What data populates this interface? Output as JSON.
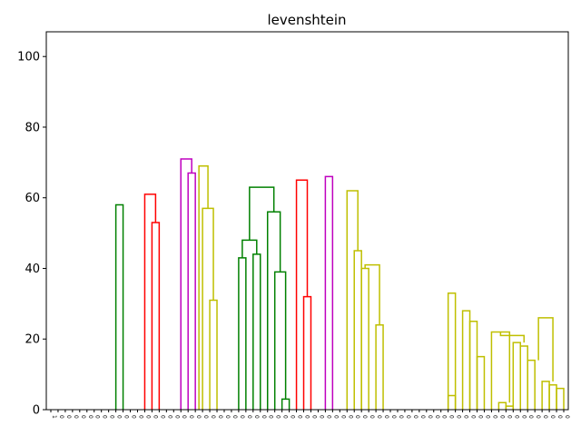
{
  "chart_data": {
    "type": "dendrogram",
    "title": "levenshtein",
    "xlabel": "",
    "ylabel": "",
    "ylim": [
      0,
      107
    ],
    "yticks": [
      0,
      20,
      40,
      60,
      80,
      100
    ],
    "leaf_count": 72,
    "leaf_labels": [
      "1",
      "0",
      "0",
      "0",
      "0",
      "0",
      "0",
      "0",
      "0",
      "0",
      "0",
      "0",
      "0",
      "0",
      "0",
      "0",
      "0",
      "0",
      "0",
      "0",
      "0",
      "0",
      "0",
      "0",
      "0",
      "0",
      "0",
      "0",
      "0",
      "0",
      "0",
      "0",
      "0",
      "0",
      "0",
      "0",
      "0",
      "0",
      "0",
      "0",
      "0",
      "0",
      "0",
      "0",
      "0",
      "0",
      "0",
      "0",
      "0",
      "0",
      "0",
      "0",
      "0",
      "0",
      "0",
      "0",
      "0",
      "0",
      "0",
      "0",
      "0",
      "0",
      "0",
      "0",
      "0",
      "0",
      "0",
      "0",
      "0",
      "0",
      "0",
      "0"
    ],
    "colors": {
      "blue": "#0000ff",
      "green": "#008000",
      "red": "#ff0000",
      "cyan": "#00bfbf",
      "magenta": "#bf00bf",
      "olive": "#bfbf00",
      "black": "#000000"
    },
    "links": [
      {
        "a": 9,
        "b": 10,
        "h": 58,
        "ha": 0,
        "hb": 0,
        "color": "green"
      },
      {
        "a": 14,
        "b": 15,
        "h": 53,
        "ha": 0,
        "hb": 0,
        "color": "red"
      },
      {
        "a": 13,
        "b": 14.5,
        "h": 61,
        "ha": 0,
        "hb": 53,
        "color": "red"
      },
      {
        "a": 19,
        "b": 20,
        "h": 67,
        "ha": 0,
        "hb": 0,
        "color": "magenta"
      },
      {
        "a": 18,
        "b": 19.5,
        "h": 71,
        "ha": 0,
        "hb": 67,
        "color": "magenta"
      },
      {
        "a": 22,
        "b": 23,
        "h": 31,
        "ha": 0,
        "hb": 0,
        "color": "olive"
      },
      {
        "a": 21,
        "b": 22.5,
        "h": 57,
        "ha": 0,
        "hb": 31,
        "color": "olive"
      },
      {
        "a": 20.5,
        "b": 21.75,
        "h": 69,
        "ha": 0,
        "hb": 57,
        "color": "olive"
      },
      {
        "a": 26,
        "b": 27,
        "h": 43,
        "ha": 0,
        "hb": 0,
        "color": "green"
      },
      {
        "a": 28,
        "b": 29,
        "h": 44,
        "ha": 0,
        "hb": 0,
        "color": "green"
      },
      {
        "a": 26.5,
        "b": 28.5,
        "h": 48,
        "ha": 43,
        "hb": 44,
        "color": "green"
      },
      {
        "a": 32,
        "b": 33,
        "h": 3,
        "ha": 0,
        "hb": 0,
        "color": "green"
      },
      {
        "a": 31,
        "b": 32.5,
        "h": 39,
        "ha": 0,
        "hb": 3,
        "color": "green"
      },
      {
        "a": 30,
        "b": 31.75,
        "h": 56,
        "ha": 0,
        "hb": 39,
        "color": "green"
      },
      {
        "a": 27.5,
        "b": 30.875,
        "h": 63,
        "ha": 48,
        "hb": 56,
        "color": "green"
      },
      {
        "a": 35,
        "b": 36,
        "h": 32,
        "ha": 0,
        "hb": 0,
        "color": "red"
      },
      {
        "a": 34,
        "b": 35.5,
        "h": 65,
        "ha": 0,
        "hb": 32,
        "color": "red"
      },
      {
        "a": 38,
        "b": 39,
        "h": 66,
        "ha": 0,
        "hb": 0,
        "color": "magenta"
      },
      {
        "a": 42,
        "b": 43,
        "h": 45,
        "ha": 0,
        "hb": 0,
        "color": "olive"
      },
      {
        "a": 43,
        "b": 44,
        "h": 40,
        "ha": 0,
        "hb": 0,
        "color": "olive"
      },
      {
        "a": 45,
        "b": 46,
        "h": 24,
        "ha": 0,
        "hb": 0,
        "color": "olive"
      },
      {
        "a": 41,
        "b": 42.5,
        "h": 62,
        "ha": 0,
        "hb": 45,
        "color": "olive"
      },
      {
        "a": 43.5,
        "b": 45.5,
        "h": 41,
        "ha": 40,
        "hb": 24,
        "color": "olive"
      },
      {
        "a": 55,
        "b": 56,
        "h": 33,
        "ha": 0,
        "hb": 0,
        "color": "olive"
      },
      {
        "a": 57,
        "b": 58,
        "h": 28,
        "ha": 0,
        "hb": 0,
        "color": "olive"
      },
      {
        "a": 58,
        "b": 59,
        "h": 25,
        "ha": 0,
        "hb": 0,
        "color": "olive"
      },
      {
        "a": 59,
        "b": 60,
        "h": 15,
        "ha": 0,
        "hb": 0,
        "color": "olive"
      },
      {
        "a": 55,
        "b": 56,
        "h": 4,
        "ha": 0,
        "hb": 0,
        "color": "olive"
      },
      {
        "a": 62,
        "b": 63,
        "h": 2,
        "ha": 0,
        "hb": 0,
        "color": "olive"
      },
      {
        "a": 63,
        "b": 64,
        "h": 1,
        "ha": 0,
        "hb": 0,
        "color": "olive"
      },
      {
        "a": 61,
        "b": 63.5,
        "h": 22,
        "ha": 0,
        "hb": 2,
        "color": "olive"
      },
      {
        "a": 64,
        "b": 65,
        "h": 19,
        "ha": 0,
        "hb": 0,
        "color": "olive"
      },
      {
        "a": 65,
        "b": 66,
        "h": 18,
        "ha": 0,
        "hb": 0,
        "color": "olive"
      },
      {
        "a": 66,
        "b": 67,
        "h": 14,
        "ha": 0,
        "hb": 0,
        "color": "olive"
      },
      {
        "a": 62.25,
        "b": 65.5,
        "h": 21,
        "ha": 22,
        "hb": 19,
        "color": "olive"
      },
      {
        "a": 68,
        "b": 69,
        "h": 8,
        "ha": 0,
        "hb": 0,
        "color": "olive"
      },
      {
        "a": 69,
        "b": 70,
        "h": 7,
        "ha": 0,
        "hb": 0,
        "color": "olive"
      },
      {
        "a": 70,
        "b": 71,
        "h": 6,
        "ha": 0,
        "hb": 0,
        "color": "olive"
      },
      {
        "a": 67.5,
        "b": 69.5,
        "h": 26,
        "ha": 14,
        "hb": 8,
        "color": "olive"
      }
    ]
  }
}
